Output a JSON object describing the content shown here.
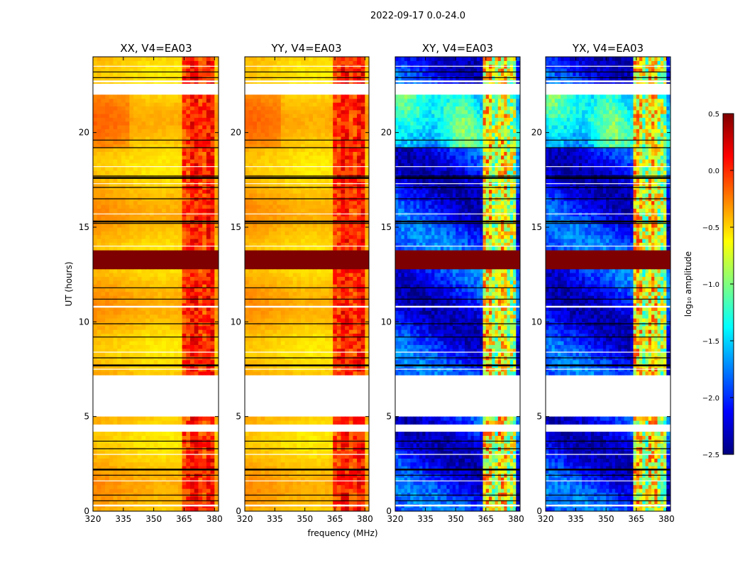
{
  "chart_data": {
    "type": "heatmap",
    "title": "2022-09-17 0.0-24.0",
    "xlabel": "frequency (MHz)",
    "ylabel": "UT (hours)",
    "xlim": [
      320,
      382
    ],
    "ylim": [
      0,
      24
    ],
    "xticks": [
      "320",
      "335",
      "350",
      "365",
      "380"
    ],
    "yticks": [
      "0",
      "5",
      "10",
      "15",
      "20"
    ],
    "panels": [
      {
        "title": "XX, V4=EA03",
        "kind": "parallel"
      },
      {
        "title": "YY, V4=EA03",
        "kind": "parallel"
      },
      {
        "title": "XY, V4=EA03",
        "kind": "cross"
      },
      {
        "title": "YX, V4=EA03",
        "kind": "cross"
      }
    ],
    "colorbar": {
      "label": "log₁₀ amplitude",
      "range": [
        -2.5,
        0.5
      ],
      "ticks": [
        "0.5",
        "0.0",
        "−0.5",
        "−1.0",
        "−1.5",
        "−2.0",
        "−2.5"
      ],
      "colormap": [
        "#00007f",
        "#0000ff",
        "#007fff",
        "#00ffff",
        "#7fff7f",
        "#ffff00",
        "#ff7f00",
        "#ff0000",
        "#7f0000"
      ]
    },
    "gaps_hours": [
      [
        4.2,
        4.6
      ],
      [
        5.0,
        7.2
      ],
      [
        22.0,
        22.6
      ]
    ],
    "flag_lines_hours": [
      0.3,
      0.55,
      0.85,
      1.6,
      1.9,
      2.2,
      3.0,
      3.3,
      3.7,
      7.5,
      7.7,
      8.1,
      8.4,
      9.2,
      9.9,
      10.8,
      11.2,
      11.8,
      14.0,
      15.2,
      15.3,
      15.7,
      16.5,
      17.1,
      17.3,
      17.6,
      17.7,
      18.2,
      19.2,
      19.6,
      22.7,
      22.9,
      23.2,
      23.5
    ],
    "rfi_band_mhz": [
      363,
      380
    ],
    "strong_rfi_hours": [
      12.6,
      13.6
    ]
  }
}
